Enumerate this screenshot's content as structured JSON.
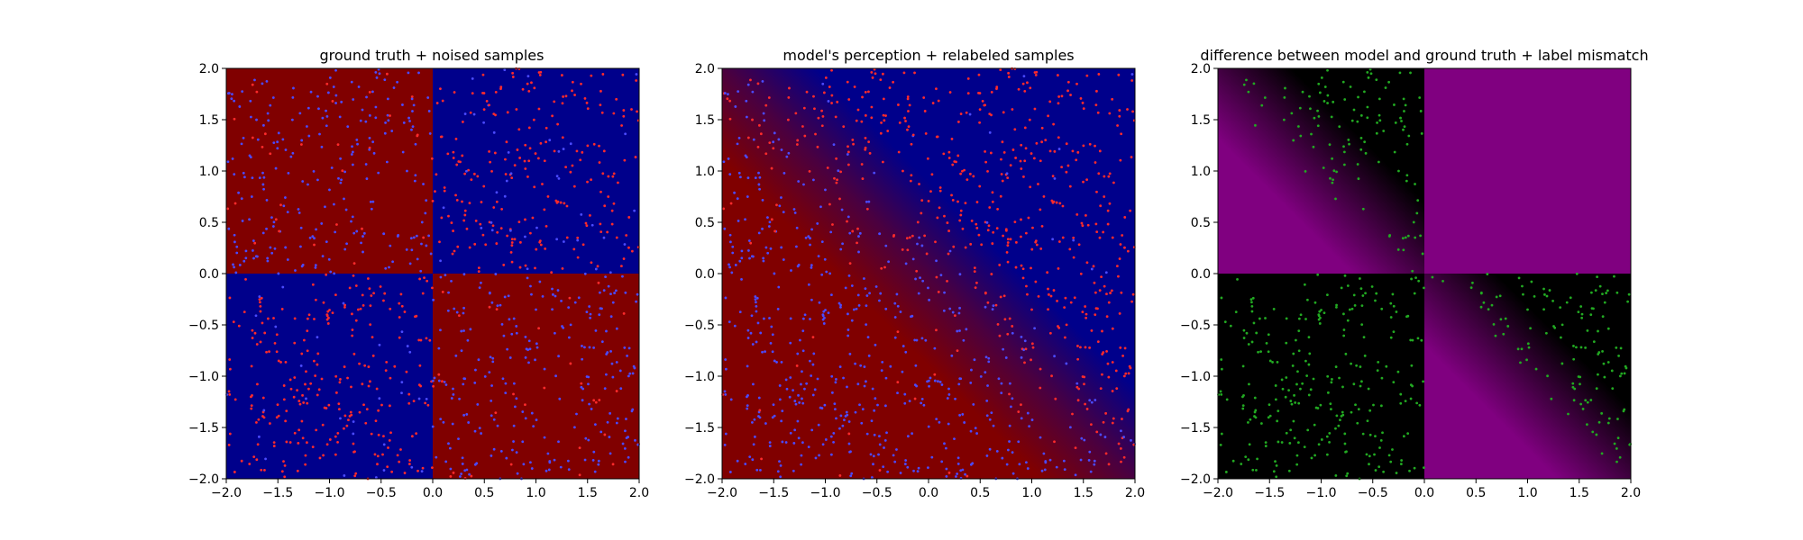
{
  "colors": {
    "red": "#800000",
    "blue": "#00008b",
    "magenta": "#800080",
    "black": "#000000",
    "red_point": "#ff2b2b",
    "blue_point": "#4b4bff",
    "green_point": "#22aa22"
  },
  "chart_data": [
    {
      "type": "heatmap",
      "title": "ground truth + noised samples",
      "xlim": [
        -2.0,
        2.0
      ],
      "ylim": [
        -2.0,
        2.0
      ],
      "xticks": [
        "−2.0",
        "−1.5",
        "−1.0",
        "−0.5",
        "0.0",
        "0.5",
        "1.0",
        "1.5",
        "2.0"
      ],
      "yticks": [
        "−2.0",
        "−1.5",
        "−1.0",
        "−0.5",
        "0.0",
        "0.5",
        "1.0",
        "1.5",
        "2.0"
      ],
      "background": "XOR quadrants: red where x·y>0 ... actually blue where x·y>0, red where x·y<0",
      "field": "ground_truth",
      "samples": "uniform points in [-2,2]², colored red/blue with label noise"
    },
    {
      "type": "heatmap",
      "title": "model's perception + relabeled samples",
      "xlim": [
        -2.0,
        2.0
      ],
      "ylim": [
        -2.0,
        2.0
      ],
      "xticks": [
        "−2.0",
        "−1.5",
        "−1.0",
        "−0.5",
        "0.0",
        "0.5",
        "1.0",
        "1.5",
        "2.0"
      ],
      "yticks": [
        "−2.0",
        "−1.5",
        "−1.0",
        "−0.5",
        "0.0",
        "0.5",
        "1.0",
        "1.5",
        "2.0"
      ],
      "field": "model_diagonal",
      "samples": "points relabeled by model: red above anti-diagonal, blue below, with soft boundary"
    },
    {
      "type": "heatmap",
      "title": "difference between model and ground truth + label mismatch",
      "xlim": [
        -2.0,
        2.0
      ],
      "ylim": [
        -2.0,
        2.0
      ],
      "xticks": [
        "−2.0",
        "−1.5",
        "−1.0",
        "−0.5",
        "0.0",
        "0.5",
        "1.0",
        "1.5",
        "2.0"
      ],
      "yticks": [
        "−2.0",
        "−1.5",
        "−1.0",
        "−0.5",
        "0.0",
        "0.5",
        "1.0",
        "1.5",
        "2.0"
      ],
      "field": "difference",
      "samples": "green points where labels mismatch (quadrants II and III regions)"
    }
  ]
}
